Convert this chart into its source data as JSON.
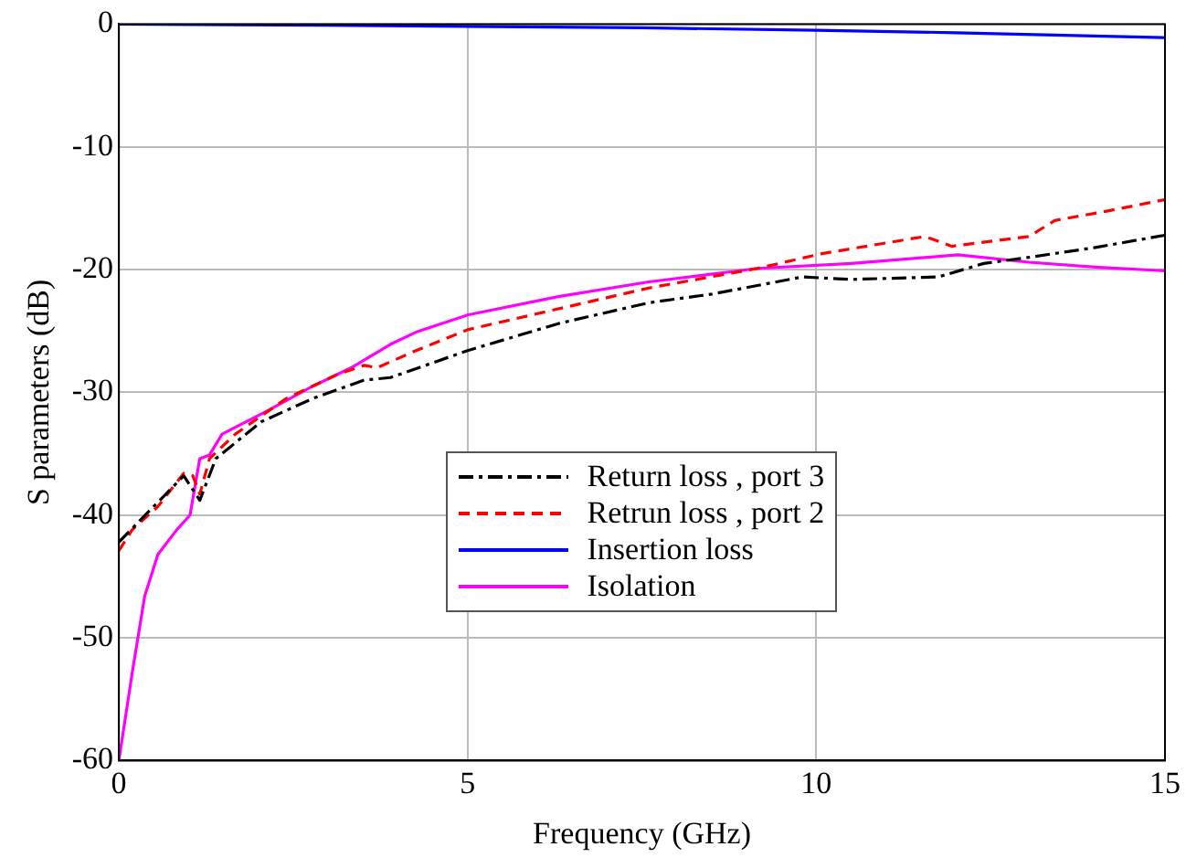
{
  "chart_data": {
    "type": "line",
    "xlabel": "Frequency (GHz)",
    "ylabel": "S parameters (dB)",
    "xlim": [
      0,
      15
    ],
    "ylim": [
      -60,
      0
    ],
    "xticks": [
      0,
      5,
      10,
      15
    ],
    "yticks": [
      -60,
      -50,
      -40,
      -30,
      -20,
      -10,
      0
    ],
    "grid": true,
    "legend": "center",
    "marker": "none",
    "series": [
      {
        "name": "Return loss , port 3",
        "color": "#000000",
        "line_style": "dashdot",
        "x": [
          0,
          0.93,
          1.16,
          1.39,
          2.04,
          2.78,
          3.52,
          3.89,
          5,
          6.3,
          7.6,
          8.5,
          9.8,
          10.5,
          11.75,
          12.4,
          13.05,
          14,
          15
        ],
        "values": [
          -42.2,
          -36.8,
          -38.8,
          -35.4,
          -32.4,
          -30.5,
          -29,
          -28.8,
          -26.6,
          -24.4,
          -22.7,
          -22,
          -20.6,
          -20.8,
          -20.6,
          -19.5,
          -19,
          -18.2,
          -17.2
        ]
      },
      {
        "name": "Retrun loss , port 2",
        "color": "#ff0000",
        "line_style": "dashed",
        "x": [
          0,
          0.19,
          0.56,
          0.93,
          1.06,
          1.16,
          1.3,
          1.67,
          2.4,
          3.15,
          3.52,
          3.7,
          4.26,
          5,
          6.3,
          7.6,
          9.16,
          10.08,
          11.56,
          11.94,
          13.05,
          13.42,
          14.2,
          15
        ],
        "values": [
          -42.9,
          -41.2,
          -39.3,
          -36.6,
          -36.8,
          -38.3,
          -35.4,
          -33.4,
          -30.5,
          -28.5,
          -27.8,
          -28,
          -26.6,
          -24.9,
          -23.2,
          -21.5,
          -19.9,
          -18.7,
          -17.3,
          -18.1,
          -17.3,
          -16,
          -15.2,
          -14.3
        ]
      },
      {
        "name": "Insertion loss",
        "color": "#0000ff",
        "line_style": "solid",
        "x": [
          0,
          3,
          7.5,
          10,
          12,
          15
        ],
        "values": [
          0,
          -0.1,
          -0.3,
          -0.5,
          -0.7,
          -1.1
        ]
      },
      {
        "name": "Isolation",
        "color": "#ff00ff",
        "line_style": "solid",
        "x": [
          0,
          0.19,
          0.37,
          0.56,
          0.83,
          1.02,
          1.16,
          1.3,
          1.48,
          2.13,
          2.78,
          3.33,
          3.89,
          4.26,
          5,
          6.3,
          7.6,
          9.16,
          10.5,
          12.03,
          13.05,
          14,
          15
        ],
        "values": [
          -60,
          -52.9,
          -46.6,
          -43.2,
          -41.2,
          -40,
          -35.4,
          -35.1,
          -33.4,
          -31.5,
          -29.5,
          -28,
          -26.1,
          -25.1,
          -23.7,
          -22.2,
          -21,
          -19.9,
          -19.5,
          -18.8,
          -19.4,
          -19.8,
          -20.1
        ]
      }
    ]
  }
}
